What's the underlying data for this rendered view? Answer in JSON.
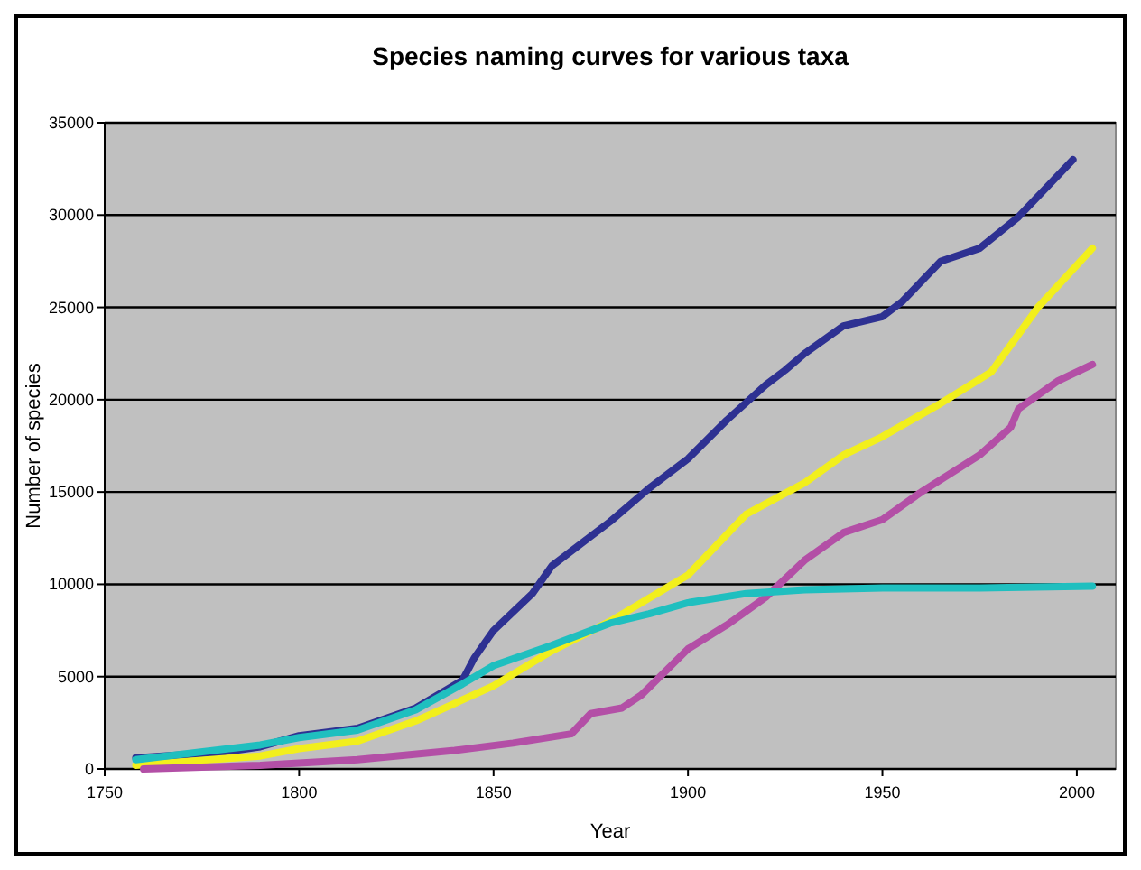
{
  "chart_data": {
    "type": "line",
    "title": "Species naming curves for various taxa",
    "xlabel": "Year",
    "ylabel": "Number of species",
    "xlim": [
      1750,
      2010
    ],
    "xticks": [
      1750,
      1800,
      1850,
      1900,
      1950,
      2000
    ],
    "ylim": [
      0,
      35000
    ],
    "yticks": [
      0,
      5000,
      10000,
      15000,
      20000,
      25000,
      30000,
      35000
    ],
    "grid": "y",
    "line_style": "solid",
    "marker": "none",
    "series": [
      {
        "color": "#2e3192",
        "x": [
          1758,
          1780,
          1790,
          1800,
          1815,
          1830,
          1842,
          1845,
          1850,
          1860,
          1865,
          1880,
          1890,
          1900,
          1910,
          1920,
          1925,
          1930,
          1940,
          1950,
          1955,
          1965,
          1975,
          1985,
          1999
        ],
        "values": [
          600,
          900,
          1200,
          1800,
          2200,
          3300,
          4800,
          6000,
          7500,
          9500,
          11000,
          13400,
          15200,
          16800,
          18900,
          20800,
          21600,
          22500,
          24000,
          24500,
          25300,
          27500,
          28200,
          29900,
          33000
        ]
      },
      {
        "color": "#f2ef1c",
        "x": [
          1758,
          1790,
          1800,
          1815,
          1830,
          1850,
          1865,
          1880,
          1900,
          1915,
          1930,
          1940,
          1950,
          1965,
          1978,
          1990,
          2004
        ],
        "values": [
          200,
          700,
          1100,
          1500,
          2600,
          4500,
          6400,
          8000,
          10500,
          13800,
          15500,
          17000,
          18000,
          19800,
          21500,
          25000,
          28200
        ]
      },
      {
        "color": "#b34fa6",
        "x": [
          1760,
          1790,
          1815,
          1840,
          1855,
          1870,
          1875,
          1883,
          1888,
          1900,
          1910,
          1920,
          1930,
          1940,
          1950,
          1960,
          1975,
          1983,
          1985,
          1995,
          2004
        ],
        "values": [
          0,
          200,
          500,
          1000,
          1400,
          1900,
          3000,
          3300,
          4000,
          6500,
          7800,
          9300,
          11300,
          12800,
          13500,
          15000,
          17000,
          18500,
          19500,
          21000,
          21900
        ]
      },
      {
        "color": "#1fbfbf",
        "x": [
          1758,
          1790,
          1800,
          1815,
          1830,
          1842,
          1850,
          1865,
          1880,
          1890,
          1900,
          1915,
          1930,
          1950,
          1975,
          2004
        ],
        "values": [
          500,
          1300,
          1700,
          2100,
          3200,
          4600,
          5600,
          6700,
          7900,
          8400,
          9000,
          9500,
          9700,
          9800,
          9800,
          9900
        ]
      }
    ]
  }
}
